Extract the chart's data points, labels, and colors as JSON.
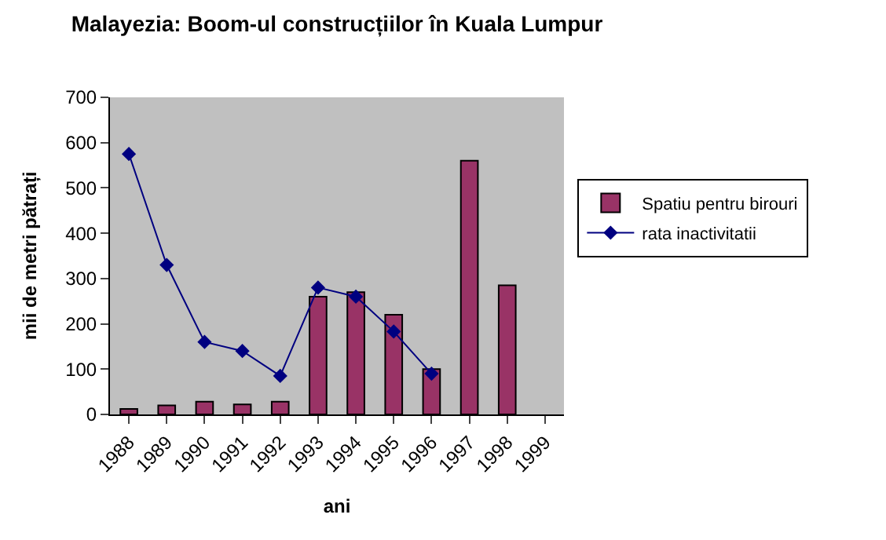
{
  "chart_data": {
    "type": "bar",
    "title": "Malayezia: Boom-ul construcțiilor în Kuala Lumpur",
    "xlabel": "ani",
    "ylabel": "mii de metri pătrați",
    "categories": [
      "1988",
      "1989",
      "1990",
      "1991",
      "1992",
      "1993",
      "1994",
      "1995",
      "1996",
      "1997",
      "1998",
      "1999"
    ],
    "series": [
      {
        "name": "Spatiu pentru birouri",
        "color": "#993366",
        "values": [
          12,
          20,
          28,
          22,
          28,
          260,
          270,
          220,
          100,
          560,
          285,
          null
        ]
      },
      {
        "name": "rata inactivitatii",
        "type": "line",
        "color": "#000080",
        "marker": "diamond",
        "values": [
          575,
          330,
          160,
          140,
          85,
          280,
          260,
          183,
          90,
          null,
          null,
          null
        ]
      }
    ],
    "ylim": [
      0,
      700
    ],
    "yticks": [
      0,
      100,
      200,
      300,
      400,
      500,
      600,
      700
    ],
    "grid": false,
    "legend": "right"
  }
}
